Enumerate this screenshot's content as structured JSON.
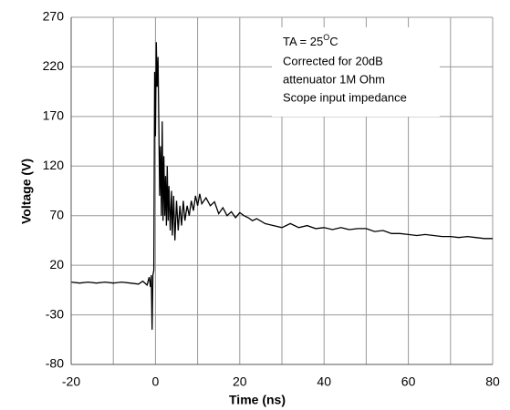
{
  "chart_data": {
    "type": "line",
    "x_label": "Time  (ns)",
    "y_label": "Voltage (V)",
    "annotation": {
      "prefix": "TA = 25",
      "superscript": "O",
      "suffix": "C",
      "lines": [
        "Corrected for 20dB",
        "attenuator 1M Ohm",
        "Scope input impedance"
      ]
    },
    "xlim": [
      -20,
      80
    ],
    "xticks": [
      -20,
      0,
      20,
      40,
      60,
      80
    ],
    "xminor": [
      -10,
      10,
      30,
      50,
      70
    ],
    "ylim": [
      -80,
      270
    ],
    "yticks": [
      -80,
      -30,
      20,
      70,
      120,
      170,
      220,
      270
    ],
    "grid": true,
    "series": [
      {
        "color": "#000000",
        "x": [
          -20,
          -18,
          -16,
          -14,
          -12,
          -10,
          -8,
          -6,
          -4,
          -3,
          -2,
          -1.5,
          -1.2,
          -1,
          -0.8,
          -0.6,
          -0.4,
          -0.2,
          0,
          0.2,
          0.4,
          0.6,
          0.8,
          1,
          1.2,
          1.4,
          1.6,
          1.8,
          2,
          2.2,
          2.4,
          2.6,
          2.8,
          3,
          3.2,
          3.5,
          3.8,
          4,
          4.3,
          4.6,
          5,
          5.4,
          5.8,
          6.2,
          6.6,
          7,
          7.5,
          8,
          8.5,
          9,
          9.5,
          10,
          10.5,
          11,
          12,
          13,
          14,
          15,
          16,
          17,
          18,
          19,
          20,
          21,
          22,
          23,
          24,
          26,
          28,
          30,
          32,
          34,
          36,
          38,
          40,
          42,
          44,
          46,
          48,
          50,
          52,
          54,
          56,
          58,
          60,
          62,
          64,
          66,
          68,
          70,
          72,
          74,
          76,
          78,
          80
        ],
        "values": [
          3,
          2,
          3,
          2,
          3,
          2,
          3,
          2,
          1,
          4,
          0,
          8,
          -2,
          10,
          -45,
          10,
          15,
          215,
          150,
          245,
          200,
          230,
          160,
          90,
          140,
          70,
          165,
          65,
          130,
          70,
          110,
          60,
          120,
          65,
          100,
          55,
          95,
          50,
          90,
          45,
          85,
          55,
          80,
          60,
          85,
          65,
          80,
          70,
          85,
          75,
          90,
          80,
          92,
          82,
          88,
          80,
          84,
          72,
          78,
          70,
          74,
          68,
          73,
          70,
          68,
          65,
          67,
          62,
          60,
          58,
          62,
          58,
          60,
          57,
          58,
          56,
          58,
          56,
          57,
          57,
          54,
          55,
          52,
          52,
          51,
          50,
          51,
          50,
          49,
          49,
          48,
          49,
          48,
          47,
          47
        ]
      }
    ]
  }
}
